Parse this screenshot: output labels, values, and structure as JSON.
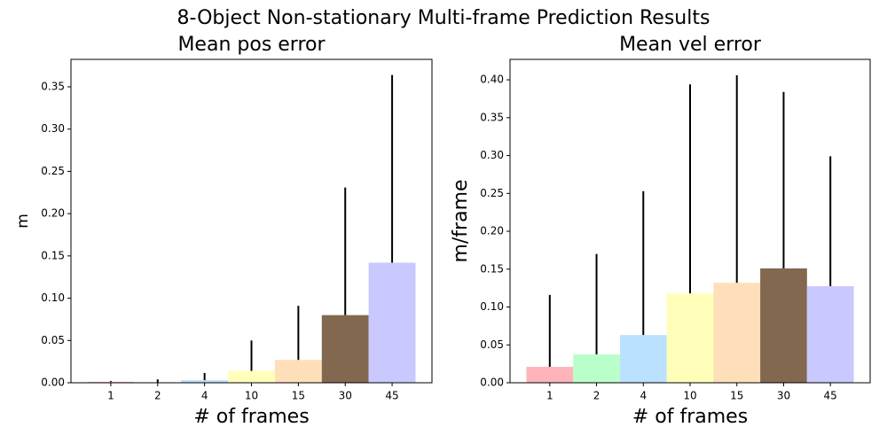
{
  "title": "8-Object Non-stationary Multi-frame Prediction Results",
  "chart_data": [
    {
      "type": "bar",
      "title": "Mean pos error",
      "x_label": "# of frames",
      "y_label": "m",
      "categories": [
        "1",
        "2",
        "4",
        "10",
        "15",
        "30",
        "45"
      ],
      "values": [
        0.001,
        0.0005,
        0.003,
        0.014,
        0.027,
        0.08,
        0.142
      ],
      "errors": [
        0.001,
        0.0035,
        0.0085,
        0.036,
        0.064,
        0.151,
        0.222
      ],
      "colors": [
        "#ffb3ba",
        "#baffc9",
        "#bae1ff",
        "#ffffba",
        "#ffdfba",
        "#82684f",
        "#c9c9ff"
      ],
      "ylim": [
        0,
        0.3825
      ],
      "yticks": [
        {
          "value": 0,
          "label": "0.00"
        },
        {
          "value": 0.05,
          "label": "0.05"
        },
        {
          "value": 0.1,
          "label": "0.10"
        },
        {
          "value": 0.15,
          "label": "0.15"
        },
        {
          "value": 0.2,
          "label": "0.20"
        },
        {
          "value": 0.25,
          "label": "0.25"
        },
        {
          "value": 0.3,
          "label": "0.30"
        },
        {
          "value": 0.35,
          "label": "0.35"
        }
      ]
    },
    {
      "type": "bar",
      "title": "Mean vel error",
      "x_label": "# of frames",
      "y_label": "m/frame",
      "categories": [
        "1",
        "2",
        "4",
        "10",
        "15",
        "30",
        "45"
      ],
      "values": [
        0.021,
        0.0374,
        0.063,
        0.118,
        0.132,
        0.151,
        0.1275
      ],
      "errors": [
        0.095,
        0.1326,
        0.19,
        0.276,
        0.274,
        0.233,
        0.1715
      ],
      "colors": [
        "#ffb3ba",
        "#baffc9",
        "#bae1ff",
        "#ffffba",
        "#ffdfba",
        "#82684f",
        "#c9c9ff"
      ],
      "ylim": [
        0,
        0.427
      ],
      "yticks": [
        {
          "value": 0,
          "label": "0.00"
        },
        {
          "value": 0.05,
          "label": "0.05"
        },
        {
          "value": 0.1,
          "label": "0.10"
        },
        {
          "value": 0.15,
          "label": "0.15"
        },
        {
          "value": 0.2,
          "label": "0.20"
        },
        {
          "value": 0.25,
          "label": "0.25"
        },
        {
          "value": 0.3,
          "label": "0.30"
        },
        {
          "value": 0.35,
          "label": "0.35"
        },
        {
          "value": 0.4,
          "label": "0.40"
        }
      ]
    }
  ]
}
